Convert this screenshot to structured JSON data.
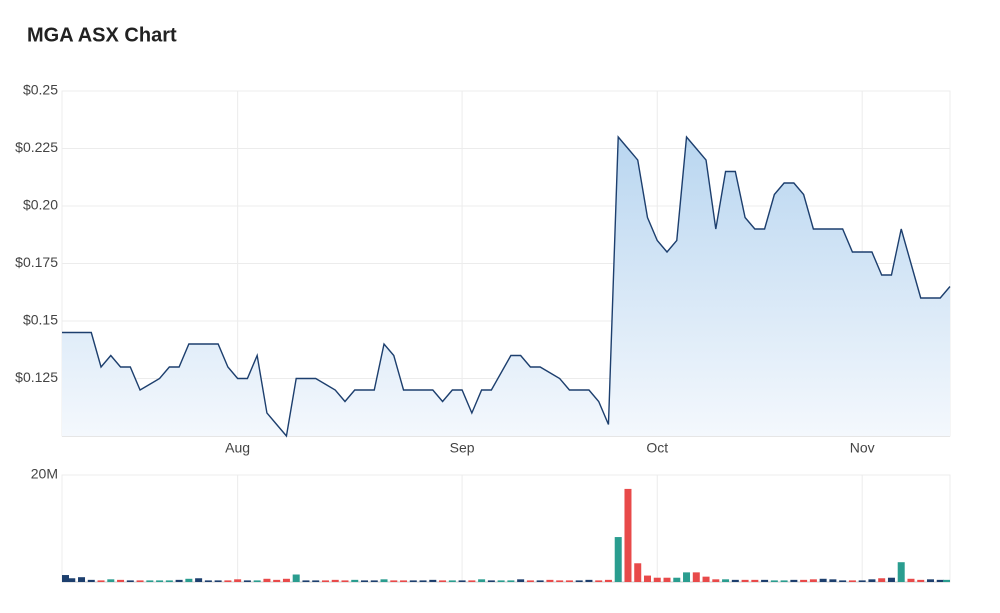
{
  "chart_data": [
    {
      "type": "line",
      "title": "MGA ASX Chart",
      "categories": [
        null,
        null,
        null,
        null,
        null,
        null,
        null,
        null,
        null,
        null,
        null,
        null,
        null,
        null,
        null,
        null,
        null,
        null,
        "Aug",
        null,
        null,
        null,
        null,
        null,
        null,
        null,
        null,
        null,
        null,
        null,
        null,
        null,
        null,
        null,
        null,
        null,
        null,
        null,
        null,
        null,
        null,
        "Sep",
        null,
        null,
        null,
        null,
        null,
        null,
        null,
        null,
        null,
        null,
        null,
        null,
        null,
        null,
        null,
        null,
        null,
        null,
        null,
        "Oct",
        null,
        null,
        null,
        null,
        null,
        null,
        null,
        null,
        null,
        null,
        null,
        null,
        null,
        null,
        null,
        null,
        null,
        null,
        null,
        null,
        "Nov",
        null,
        null,
        null,
        null,
        null,
        null,
        null,
        null,
        null
      ],
      "values": [
        0.145,
        0.145,
        0.145,
        0.145,
        0.13,
        0.135,
        0.13,
        0.13,
        0.12,
        0.1225,
        0.125,
        0.13,
        0.13,
        0.14,
        0.14,
        0.14,
        0.14,
        0.13,
        0.125,
        0.125,
        0.135,
        0.11,
        0.105,
        0.1,
        0.125,
        0.125,
        0.125,
        0.1225,
        0.12,
        0.115,
        0.12,
        0.12,
        0.12,
        0.14,
        0.135,
        0.12,
        0.12,
        0.12,
        0.12,
        0.115,
        0.12,
        0.12,
        0.11,
        0.12,
        0.12,
        0.1275,
        0.135,
        0.135,
        0.13,
        0.13,
        0.1275,
        0.125,
        0.12,
        0.12,
        0.12,
        0.115,
        0.105,
        0.23,
        0.225,
        0.22,
        0.195,
        0.185,
        0.18,
        0.185,
        0.23,
        0.225,
        0.22,
        0.19,
        0.215,
        0.215,
        0.195,
        0.19,
        0.19,
        0.205,
        0.21,
        0.21,
        0.205,
        0.19,
        0.19,
        0.19,
        0.19,
        0.18,
        0.18,
        0.18,
        0.17,
        0.17,
        0.19,
        0.175,
        0.16,
        0.16,
        0.16,
        0.165
      ],
      "color": "#1d3f6e",
      "ylim": [
        0.1,
        0.25
      ],
      "yticks": [
        {
          "value": 0.125,
          "label": "$0.125"
        },
        {
          "value": 0.15,
          "label": "$0.15"
        },
        {
          "value": 0.175,
          "label": "$0.175"
        },
        {
          "value": 0.2,
          "label": "$0.20"
        },
        {
          "value": 0.225,
          "label": "$0.225"
        },
        {
          "value": 0.25,
          "label": "$0.25"
        }
      ],
      "grid": true
    },
    {
      "type": "bar",
      "values": [
        1300000,
        700000,
        900000,
        400000,
        300000,
        500000,
        400000,
        300000,
        300000,
        300000,
        300000,
        300000,
        400000,
        600000,
        700000,
        300000,
        300000,
        300000,
        500000,
        300000,
        300000,
        600000,
        400000,
        600000,
        1400000,
        300000,
        300000,
        300000,
        400000,
        300000,
        400000,
        300000,
        300000,
        500000,
        300000,
        300000,
        300000,
        300000,
        400000,
        300000,
        300000,
        300000,
        300000,
        500000,
        300000,
        300000,
        300000,
        500000,
        300000,
        300000,
        400000,
        300000,
        300000,
        300000,
        400000,
        300000,
        400000,
        8400000,
        17400000,
        3500000,
        1200000,
        800000,
        800000,
        800000,
        1800000,
        1800000,
        1000000,
        500000,
        500000,
        400000,
        400000,
        400000,
        400000,
        300000,
        300000,
        400000,
        400000,
        500000,
        600000,
        500000,
        300000,
        300000,
        300000,
        500000,
        700000,
        800000,
        3700000,
        600000,
        400000,
        500000,
        400000,
        400000
      ],
      "up_color": "#2a9d8f",
      "down_color": "#e84a4a",
      "flat_color": "#1d3f6e",
      "ylim": [
        0,
        20000000
      ],
      "yticks": [
        {
          "value": 20000000,
          "label": "20M"
        }
      ],
      "grid": true
    }
  ]
}
